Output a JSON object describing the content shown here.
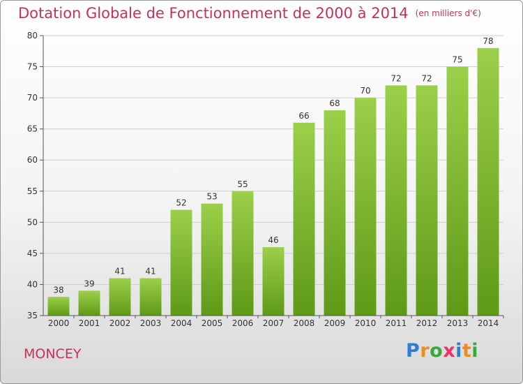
{
  "title": "Dotation Globale de Fonctionnement de 2000 à 2014",
  "unit": "(en milliers d'€)",
  "commune": "MONCEY",
  "brand": {
    "letters": [
      "P",
      "r",
      "o",
      "x",
      "i",
      "t",
      "i"
    ],
    "colors": [
      "#2a7fd4",
      "#f08a1c",
      "#3aa838",
      "#e8336b",
      "#2a7fd4",
      "#f08a1c",
      "#3aa838"
    ]
  },
  "chart_data": {
    "type": "bar",
    "categories": [
      "2000",
      "2001",
      "2002",
      "2003",
      "2004",
      "2005",
      "2006",
      "2007",
      "2008",
      "2009",
      "2010",
      "2011",
      "2012",
      "2013",
      "2014"
    ],
    "values": [
      38,
      39,
      41,
      41,
      52,
      53,
      55,
      46,
      66,
      68,
      70,
      72,
      72,
      75,
      78
    ],
    "ylim": [
      35,
      80
    ],
    "yticks": [
      35,
      40,
      45,
      50,
      55,
      60,
      65,
      70,
      75,
      80
    ],
    "bar_color_top": "#9ccf4a",
    "bar_color_bottom": "#5e9a16",
    "grid": true
  }
}
